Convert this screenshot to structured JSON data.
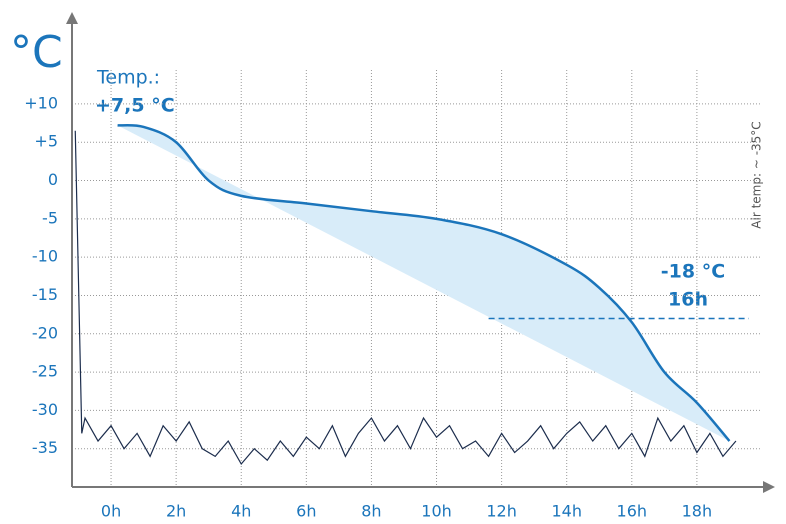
{
  "chart_data": {
    "type": "line",
    "y_axis_label": "°C",
    "xlim": [
      -1.2,
      20.4
    ],
    "ylim": [
      -40,
      22
    ],
    "xticks": [
      {
        "value": 0,
        "label": "0h"
      },
      {
        "value": 2,
        "label": "2h"
      },
      {
        "value": 4,
        "label": "4h"
      },
      {
        "value": 6,
        "label": "6h"
      },
      {
        "value": 8,
        "label": "8h"
      },
      {
        "value": 10,
        "label": "10h"
      },
      {
        "value": 12,
        "label": "12h"
      },
      {
        "value": 14,
        "label": "14h"
      },
      {
        "value": 16,
        "label": "16h"
      },
      {
        "value": 18,
        "label": "18h"
      }
    ],
    "yticks": [
      {
        "value": 10,
        "label": "+10"
      },
      {
        "value": 5,
        "label": "+5"
      },
      0,
      -5,
      -10,
      -15,
      -20,
      -25,
      -30,
      -35
    ],
    "grid": true,
    "series": [
      {
        "color": "#1b75bb",
        "fill": "#d8ecf9",
        "x": [
          0.2,
          1,
          2,
          3,
          4,
          6,
          8,
          10,
          12,
          14,
          15,
          16,
          17,
          18,
          19
        ],
        "values": [
          7.2,
          7,
          5,
          0,
          -2,
          -3,
          -4,
          -5,
          -7,
          -11,
          -14,
          -18.5,
          -25,
          -29,
          -34
        ]
      },
      {
        "color": "#1c2d4d",
        "x": [
          -1.1,
          -0.9,
          -0.8,
          -0.4,
          0,
          0.4,
          0.8,
          1.2,
          1.6,
          2,
          2.4,
          2.8,
          3.2,
          3.6,
          4,
          4.4,
          4.8,
          5.2,
          5.6,
          6,
          6.4,
          6.8,
          7.2,
          7.6,
          8,
          8.4,
          8.8,
          9.2,
          9.6,
          10,
          10.4,
          10.8,
          11.2,
          11.6,
          12,
          12.4,
          12.8,
          13.2,
          13.6,
          14,
          14.4,
          14.8,
          15.2,
          15.6,
          16,
          16.4,
          16.8,
          17.2,
          17.6,
          18,
          18.4,
          18.8,
          19.2
        ],
        "values": [
          6.5,
          -33,
          -31,
          -34,
          -32,
          -35,
          -33,
          -36,
          -32,
          -34,
          -31.5,
          -35,
          -36,
          -34,
          -37,
          -35,
          -36.5,
          -34,
          -36,
          -33.5,
          -35,
          -32,
          -36,
          -33,
          -31,
          -34,
          -32,
          -35,
          -31,
          -33.5,
          -32,
          -35,
          -34,
          -36,
          -33,
          -35.5,
          -34,
          -32,
          -35,
          -33,
          -31.5,
          -34,
          -32,
          -35,
          -33,
          -36,
          -31,
          -34,
          -32,
          -35.5,
          -33,
          -36,
          -34
        ]
      }
    ],
    "reference_line": {
      "y": -18,
      "x": [
        11.6,
        19.6
      ],
      "color": "#1b75bb"
    },
    "annotations": [
      "Temp.:",
      "+7,5 °C",
      "-18 °C",
      "16h",
      "Air temp: ~ -35°C"
    ]
  }
}
